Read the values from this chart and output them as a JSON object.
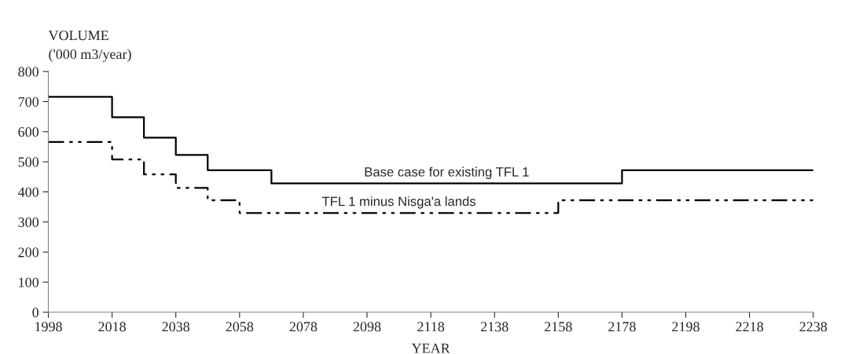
{
  "chart_data": {
    "type": "step",
    "xlabel": "YEAR",
    "ylabel": "VOLUME\n('000 m3/year)",
    "xlim": [
      1998,
      2238
    ],
    "xticks": [
      1998,
      2018,
      2038,
      2058,
      2078,
      2098,
      2118,
      2138,
      2158,
      2178,
      2198,
      2218,
      2238
    ],
    "ylim": [
      0,
      800
    ],
    "yticks": [
      0,
      100,
      200,
      300,
      400,
      500,
      600,
      700,
      800
    ],
    "grid": false,
    "legend": false,
    "series": [
      {
        "name": "Base case for existing TFL 1",
        "color": "#000000",
        "line_style": "solid",
        "x": [
          1998,
          2018,
          2028,
          2038,
          2048,
          2068,
          2178,
          2238
        ],
        "values": [
          716,
          648,
          580,
          523,
          472,
          428,
          472,
          472
        ]
      },
      {
        "name": "TFL 1 minus Nisga'a lands",
        "color": "#000000",
        "line_style": "dashed",
        "x": [
          1998,
          2018,
          2028,
          2038,
          2048,
          2058,
          2158,
          2238
        ],
        "values": [
          566,
          508,
          458,
          413,
          372,
          330,
          372,
          372
        ]
      }
    ]
  }
}
